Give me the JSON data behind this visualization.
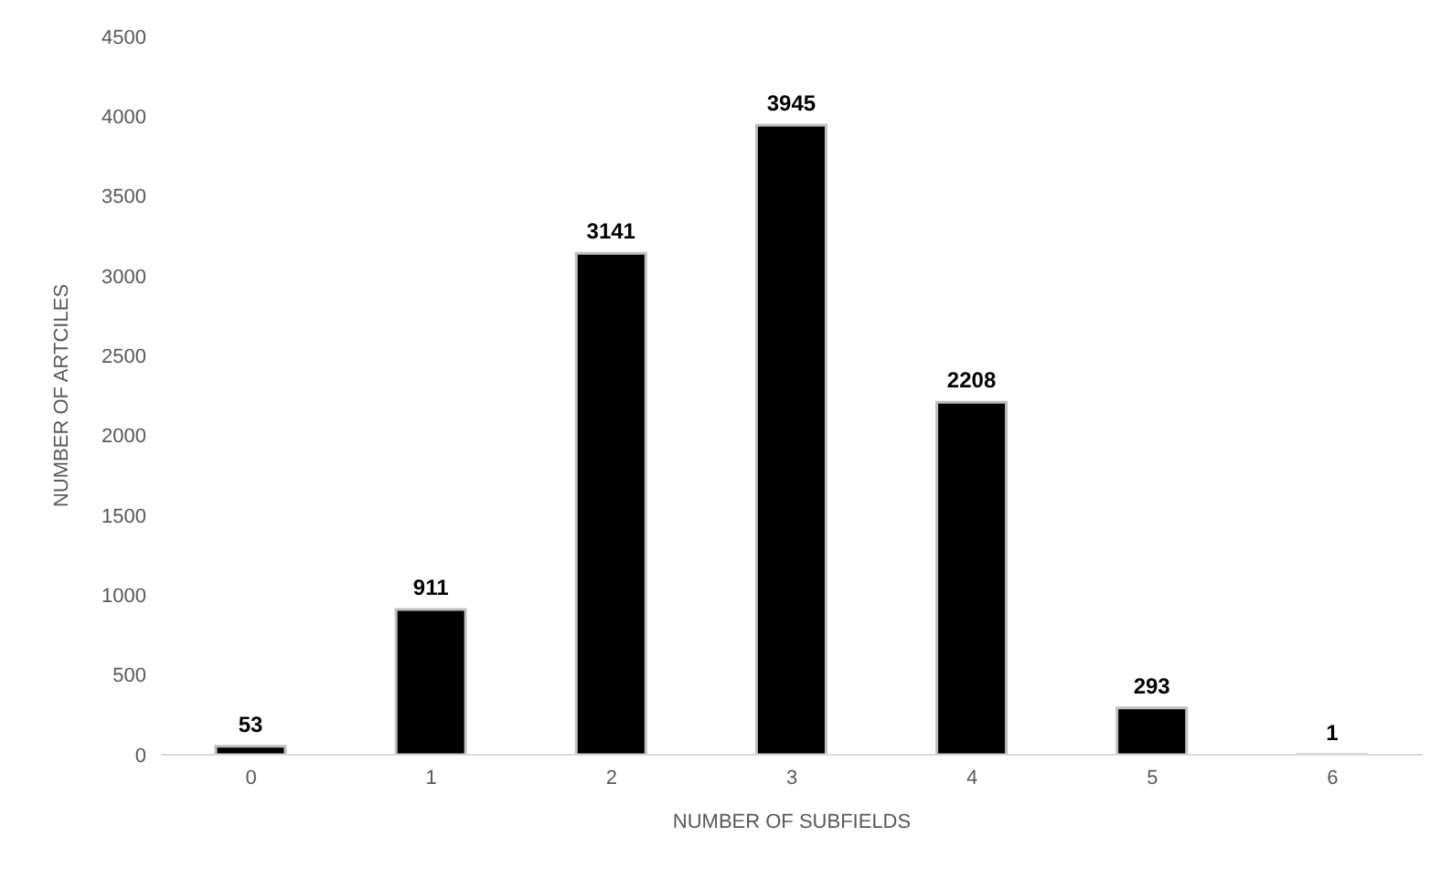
{
  "chart_data": {
    "type": "bar",
    "xlabel": "NUMBER OF SUBFIELDS",
    "ylabel": "NUMBER OF ARTCILES",
    "categories": [
      "0",
      "1",
      "2",
      "3",
      "4",
      "5",
      "6"
    ],
    "values": [
      53,
      911,
      3141,
      3945,
      2208,
      293,
      1
    ],
    "color": "#000000",
    "ylim": [
      0,
      4500
    ],
    "yticks": [
      0,
      500,
      1000,
      1500,
      2000,
      2500,
      3000,
      3500,
      4000,
      4500
    ],
    "data_labels": true
  }
}
